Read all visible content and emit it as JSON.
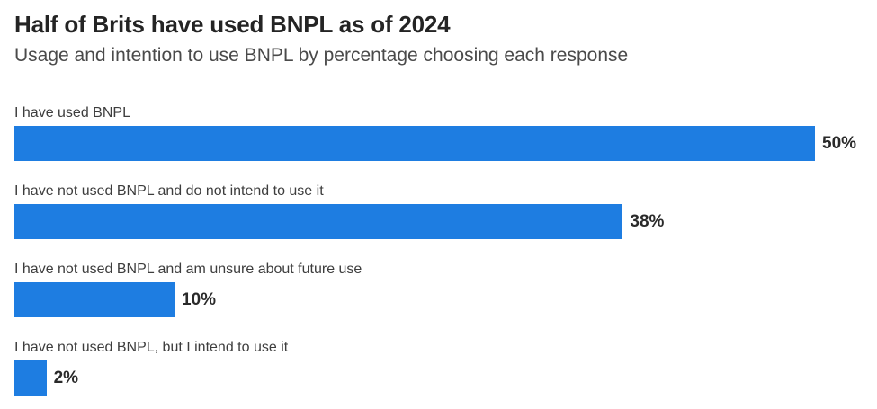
{
  "header": {
    "title": "Half of Brits have used BNPL as of 2024",
    "subtitle": "Usage and intention to use BNPL by percentage choosing each response"
  },
  "chart_data": {
    "type": "bar",
    "orientation": "horizontal",
    "title": "Half of Brits have used BNPL as of 2024",
    "subtitle": "Usage and intention to use BNPL by percentage choosing each response",
    "categories": [
      "I have used BNPL",
      "I have not used BNPL and do not intend to use it",
      "I have not used BNPL and am unsure about future use",
      "I have not used BNPL, but I intend to use it"
    ],
    "values": [
      50,
      38,
      10,
      2
    ],
    "value_labels": [
      "50%",
      "38%",
      "10%",
      "2%"
    ],
    "xlim": [
      0,
      50
    ],
    "xlabel": "",
    "ylabel": "",
    "grid": false,
    "legend_position": "none",
    "data_labels": "outside-end"
  },
  "colors": {
    "bar": "#1e7de1",
    "title": "#242424",
    "subtitle": "#4a4a4a",
    "category_label": "#3d3d3d",
    "value_label": "#2a2a2a",
    "background": "#ffffff"
  }
}
